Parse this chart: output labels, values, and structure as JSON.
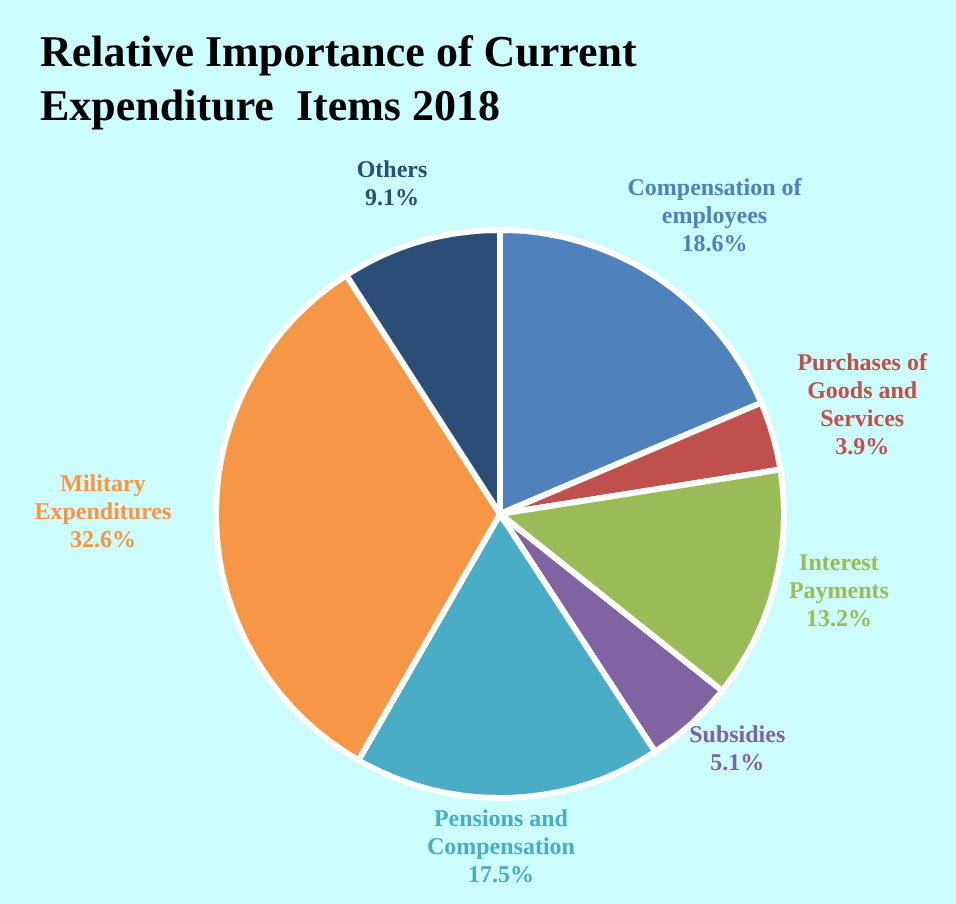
{
  "chart_data": {
    "type": "pie",
    "title": "Relative Importance of Current Expenditure  Items 2018",
    "categories": [
      "Compensation of employees",
      "Purchases of Goods and Services",
      "Interest Payments",
      "Subsidies",
      "Pensions and Compensation",
      "Military Expenditures",
      "Others"
    ],
    "values": [
      18.6,
      3.9,
      13.2,
      5.1,
      17.5,
      32.6,
      9.1
    ],
    "colors": [
      "#4f81bd",
      "#c0504d",
      "#9bbb59",
      "#8064a2",
      "#4bacc6",
      "#f79646",
      "#2c4d75"
    ],
    "value_labels": [
      "18.6%",
      "3.9%",
      "13.2%",
      "5.1%",
      "17.5%",
      "32.6%",
      "9.1%"
    ],
    "legend": false
  }
}
